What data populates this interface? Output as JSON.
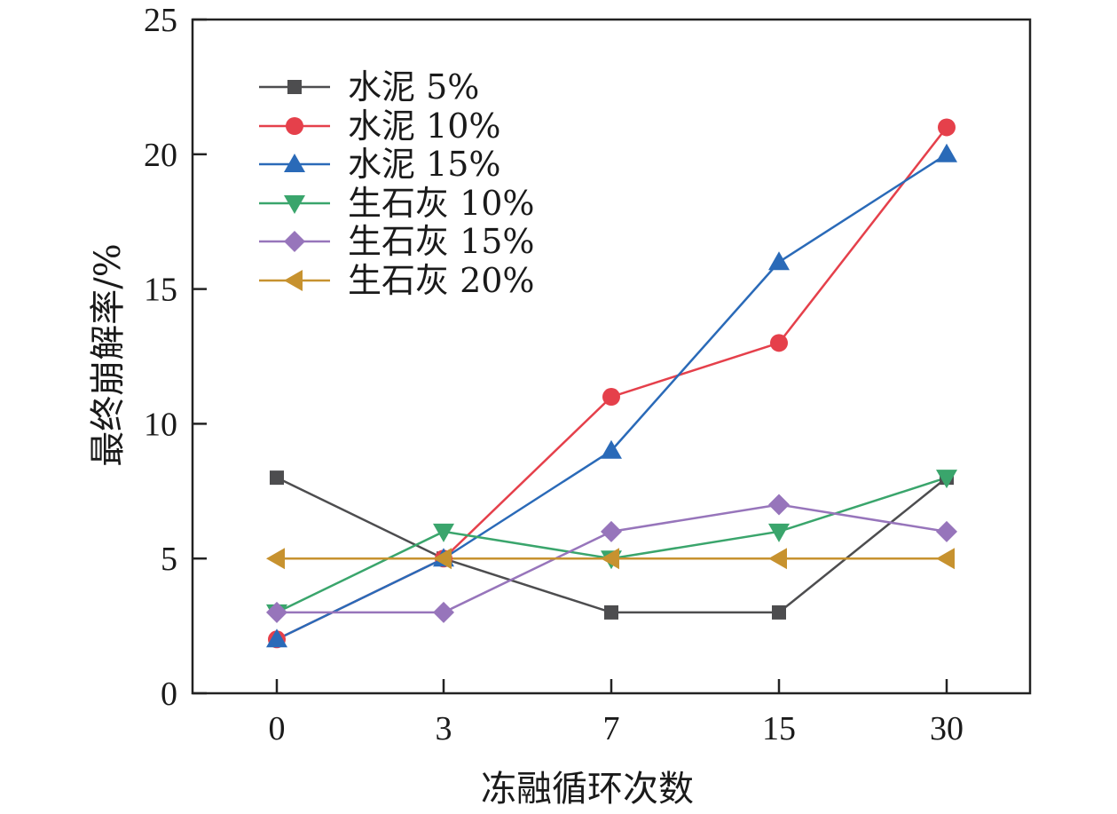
{
  "chart_data": {
    "type": "line",
    "title": "",
    "xlabel": "冻融循环次数",
    "ylabel": "最终崩解率/%",
    "categories": [
      "0",
      "3",
      "7",
      "15",
      "30"
    ],
    "ylim": [
      0,
      25
    ],
    "yticks": [
      "0",
      "5",
      "10",
      "15",
      "20",
      "25"
    ],
    "grid": false,
    "legend_position": "top-left",
    "series": [
      {
        "name": "水泥 5%",
        "color": "#4d4d4f",
        "marker": "square",
        "values": [
          8,
          5,
          3,
          3,
          8
        ]
      },
      {
        "name": "水泥 10%",
        "color": "#e5404b",
        "marker": "circle",
        "values": [
          2,
          5,
          11,
          13,
          21
        ]
      },
      {
        "name": "水泥 15%",
        "color": "#2a6ab8",
        "marker": "triangle-up",
        "values": [
          2,
          5,
          9,
          16,
          20
        ]
      },
      {
        "name": "生石灰 10%",
        "color": "#3aa56c",
        "marker": "triangle-down",
        "values": [
          3,
          6,
          5,
          6,
          8
        ]
      },
      {
        "name": "生石灰 15%",
        "color": "#9775bb",
        "marker": "diamond",
        "values": [
          3,
          3,
          6,
          7,
          6
        ]
      },
      {
        "name": "生石灰 20%",
        "color": "#c7922f",
        "marker": "triangle-left",
        "values": [
          5,
          5,
          5,
          5,
          5
        ]
      }
    ]
  }
}
